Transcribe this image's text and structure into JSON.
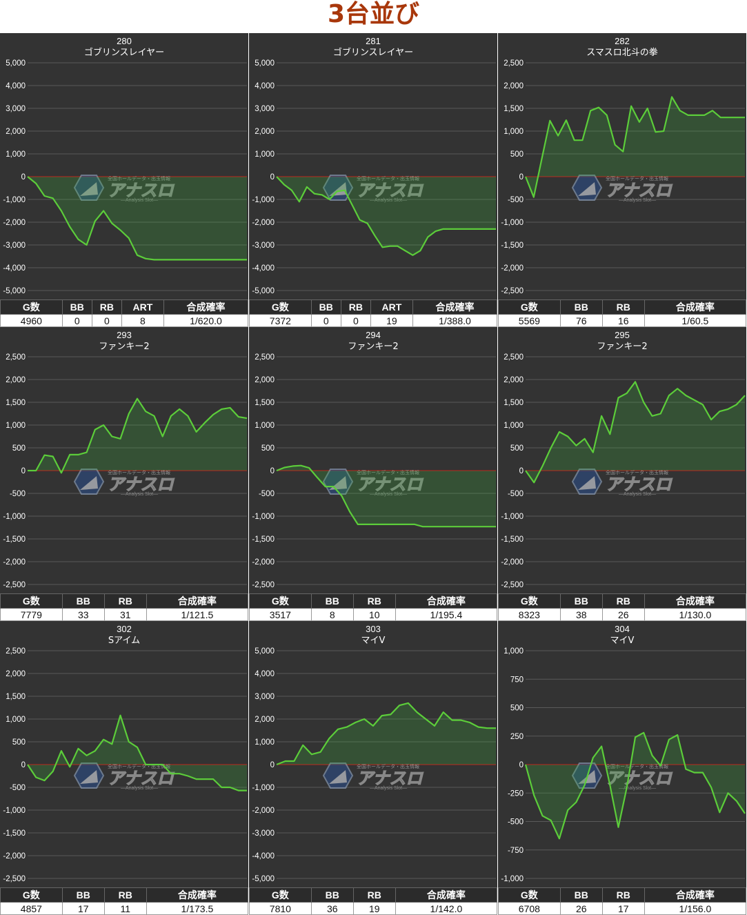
{
  "page": {
    "title": "3台並び"
  },
  "watermark": {
    "line1": "全国ホールデータ・出玉情報",
    "logo": "アナスロ",
    "line2": "—Analysis Slot—"
  },
  "charts": [
    {
      "machine_no": "280",
      "machine_name": "ゴブリンスレイヤー",
      "headers": [
        "G数",
        "BB",
        "RB",
        "ART",
        "合成確率"
      ],
      "values": [
        "4960",
        "0",
        "0",
        "8",
        "1/620.0"
      ],
      "chart_data": {
        "type": "area",
        "ylim": [
          -5000,
          5000
        ],
        "yticks": [
          "5,000",
          "4,000",
          "3,000",
          "2,000",
          "1,000",
          "0",
          "-1,000",
          "-2,000",
          "-3,000",
          "-4,000",
          "-5,000"
        ],
        "y": [
          0,
          -300,
          -850,
          -950,
          -1500,
          -2200,
          -2750,
          -3000,
          -1950,
          -1500,
          -2050,
          -2350,
          -2700,
          -3450,
          -3600,
          -3650,
          -3650,
          -3650,
          -3650,
          -3650,
          -3650,
          -3650,
          -3650,
          -3650,
          -3650,
          -3650,
          -3650
        ]
      }
    },
    {
      "machine_no": "281",
      "machine_name": "ゴブリンスレイヤー",
      "headers": [
        "G数",
        "BB",
        "RB",
        "ART",
        "合成確率"
      ],
      "values": [
        "7372",
        "0",
        "0",
        "19",
        "1/388.0"
      ],
      "chart_data": {
        "type": "area",
        "ylim": [
          -5000,
          5000
        ],
        "yticks": [
          "5,000",
          "4,000",
          "3,000",
          "2,000",
          "1,000",
          "0",
          "-1,000",
          "-2,000",
          "-3,000",
          "-4,000",
          "-5,000"
        ],
        "y": [
          0,
          -350,
          -600,
          -1100,
          -450,
          -750,
          -800,
          -1000,
          -650,
          -600,
          -1250,
          -1900,
          -2050,
          -2600,
          -3100,
          -3050,
          -3050,
          -3250,
          -3450,
          -3250,
          -2650,
          -2400,
          -2300,
          -2300,
          -2300,
          -2300,
          -2300,
          -2300,
          -2300,
          -2300
        ]
      }
    },
    {
      "machine_no": "282",
      "machine_name": "スマスロ北斗の拳",
      "headers": [
        "G数",
        "BB",
        "RB",
        "合成確率"
      ],
      "values": [
        "5569",
        "76",
        "16",
        "1/60.5"
      ],
      "chart_data": {
        "type": "area",
        "ylim": [
          -2500,
          2500
        ],
        "yticks": [
          "2,500",
          "2,000",
          "1,500",
          "1,000",
          "500",
          "0",
          "-500",
          "-1,000",
          "-1,500",
          "-2,000",
          "-2,500"
        ],
        "y": [
          0,
          -450,
          400,
          1230,
          900,
          1240,
          800,
          800,
          1450,
          1520,
          1350,
          700,
          550,
          1550,
          1200,
          1500,
          980,
          1000,
          1750,
          1450,
          1350,
          1350,
          1350,
          1450,
          1300,
          1300,
          1300,
          1300
        ]
      }
    },
    {
      "machine_no": "293",
      "machine_name": "ファンキー2",
      "headers": [
        "G数",
        "BB",
        "RB",
        "合成確率"
      ],
      "values": [
        "7779",
        "33",
        "31",
        "1/121.5"
      ],
      "chart_data": {
        "type": "area",
        "ylim": [
          -2500,
          2500
        ],
        "yticks": [
          "2,500",
          "2,000",
          "1,500",
          "1,000",
          "500",
          "0",
          "-500",
          "-1,000",
          "-1,500",
          "-2,000",
          "-2,500"
        ],
        "y": [
          0,
          0,
          340,
          310,
          -50,
          350,
          350,
          400,
          900,
          1000,
          750,
          700,
          1250,
          1580,
          1300,
          1200,
          750,
          1200,
          1350,
          1200,
          850,
          1050,
          1230,
          1350,
          1380,
          1180,
          1150
        ]
      }
    },
    {
      "machine_no": "294",
      "machine_name": "ファンキー2",
      "headers": [
        "G数",
        "BB",
        "RB",
        "合成確率"
      ],
      "values": [
        "3517",
        "8",
        "10",
        "1/195.4"
      ],
      "chart_data": {
        "type": "area",
        "ylim": [
          -2500,
          2500
        ],
        "yticks": [
          "2,500",
          "2,000",
          "1,500",
          "1,000",
          "500",
          "0",
          "-500",
          "-1,000",
          "-1,500",
          "-2,000",
          "-2,500"
        ],
        "y": [
          0,
          70,
          100,
          110,
          60,
          -150,
          -350,
          -350,
          -550,
          -900,
          -1180,
          -1180,
          -1180,
          -1180,
          -1180,
          -1180,
          -1180,
          -1180,
          -1230,
          -1230,
          -1230,
          -1230,
          -1230,
          -1230,
          -1230,
          -1230,
          -1230,
          -1230
        ]
      }
    },
    {
      "machine_no": "295",
      "machine_name": "ファンキー2",
      "headers": [
        "G数",
        "BB",
        "RB",
        "合成確率"
      ],
      "values": [
        "8323",
        "38",
        "26",
        "1/130.0"
      ],
      "chart_data": {
        "type": "area",
        "ylim": [
          -2500,
          2500
        ],
        "yticks": [
          "2,500",
          "2,000",
          "1,500",
          "1,000",
          "500",
          "0",
          "-500",
          "-1,000",
          "-1,500",
          "-2,000",
          "-2,500"
        ],
        "y": [
          0,
          -260,
          100,
          500,
          850,
          750,
          550,
          700,
          400,
          1200,
          800,
          1600,
          1700,
          1950,
          1500,
          1200,
          1250,
          1650,
          1800,
          1650,
          1550,
          1450,
          1120,
          1300,
          1350,
          1450,
          1650
        ]
      }
    },
    {
      "machine_no": "302",
      "machine_name": "Sアイム",
      "headers": [
        "G数",
        "BB",
        "RB",
        "合成確率"
      ],
      "values": [
        "4857",
        "17",
        "11",
        "1/173.5"
      ],
      "chart_data": {
        "type": "area",
        "ylim": [
          -2500,
          2500
        ],
        "yticks": [
          "2,500",
          "2,000",
          "1,500",
          "1,000",
          "500",
          "0",
          "-500",
          "-1,000",
          "-1,500",
          "-2,000",
          "-2,500"
        ],
        "y": [
          0,
          -280,
          -350,
          -150,
          300,
          -50,
          350,
          200,
          300,
          550,
          450,
          1080,
          500,
          380,
          0,
          0,
          0,
          -200,
          -200,
          -250,
          -320,
          -320,
          -320,
          -500,
          -500,
          -570,
          -570
        ]
      }
    },
    {
      "machine_no": "303",
      "machine_name": "マイV",
      "headers": [
        "G数",
        "BB",
        "RB",
        "合成確率"
      ],
      "values": [
        "7810",
        "36",
        "19",
        "1/142.0"
      ],
      "chart_data": {
        "type": "area",
        "ylim": [
          -5000,
          5000
        ],
        "yticks": [
          "5,000",
          "4,000",
          "3,000",
          "2,000",
          "1,000",
          "0",
          "-1,000",
          "-2,000",
          "-3,000",
          "-4,000",
          "-5,000"
        ],
        "y": [
          0,
          150,
          150,
          850,
          450,
          550,
          1150,
          1550,
          1650,
          1850,
          2000,
          1700,
          2150,
          2200,
          2600,
          2700,
          2300,
          2000,
          1700,
          2300,
          1950,
          1950,
          1850,
          1650,
          1600,
          1600
        ]
      }
    },
    {
      "machine_no": "304",
      "machine_name": "マイV",
      "headers": [
        "G数",
        "BB",
        "RB",
        "合成確率"
      ],
      "values": [
        "6708",
        "26",
        "17",
        "1/156.0"
      ],
      "chart_data": {
        "type": "area",
        "ylim": [
          -1000,
          1000
        ],
        "yticks": [
          "1,000",
          "750",
          "500",
          "250",
          "0",
          "-250",
          "-500",
          "-750",
          "-1,000"
        ],
        "y": [
          0,
          -270,
          -450,
          -490,
          -650,
          -400,
          -330,
          -180,
          60,
          160,
          -180,
          -550,
          -200,
          240,
          280,
          80,
          -10,
          220,
          260,
          -40,
          -70,
          -70,
          -200,
          -420,
          -250,
          -320,
          -430
        ]
      }
    }
  ]
}
